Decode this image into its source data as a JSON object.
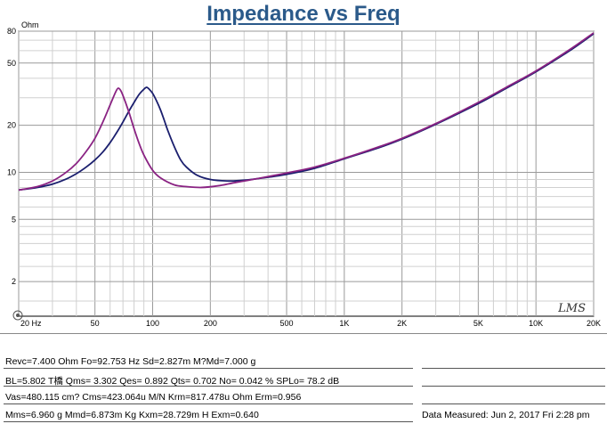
{
  "chart_data": {
    "type": "line",
    "title": "Impedance vs Freq",
    "ylabel": "Ohm",
    "xlabel": "",
    "xscale": "log",
    "yscale": "log",
    "xlim": [
      20,
      20000
    ],
    "ylim": [
      1.2,
      80
    ],
    "x_tick_labels": [
      {
        "value": 20,
        "label": "20 Hz"
      },
      {
        "value": 50,
        "label": "50"
      },
      {
        "value": 100,
        "label": "100"
      },
      {
        "value": 200,
        "label": "200"
      },
      {
        "value": 500,
        "label": "500"
      },
      {
        "value": 1000,
        "label": "1K"
      },
      {
        "value": 2000,
        "label": "2K"
      },
      {
        "value": 5000,
        "label": "5K"
      },
      {
        "value": 10000,
        "label": "10K"
      },
      {
        "value": 20000,
        "label": "20K"
      }
    ],
    "y_tick_labels": [
      {
        "value": 80,
        "label": "80"
      },
      {
        "value": 50,
        "label": "50"
      },
      {
        "value": 20,
        "label": "20"
      },
      {
        "value": 10,
        "label": "10"
      },
      {
        "value": 5,
        "label": "5"
      },
      {
        "value": 2,
        "label": "2"
      }
    ],
    "watermark": "LMS",
    "series": [
      {
        "name": "blue",
        "color": "#1b1f6e",
        "points": [
          [
            20,
            7.7
          ],
          [
            25,
            8.0
          ],
          [
            30,
            8.4
          ],
          [
            35,
            9.0
          ],
          [
            40,
            9.8
          ],
          [
            45,
            10.8
          ],
          [
            50,
            12.0
          ],
          [
            55,
            13.5
          ],
          [
            60,
            15.5
          ],
          [
            65,
            18.0
          ],
          [
            70,
            21.0
          ],
          [
            75,
            24.5
          ],
          [
            80,
            28.0
          ],
          [
            85,
            31.5
          ],
          [
            90,
            34.0
          ],
          [
            93,
            35.0
          ],
          [
            96,
            34.0
          ],
          [
            100,
            32.0
          ],
          [
            105,
            28.5
          ],
          [
            110,
            25.0
          ],
          [
            115,
            21.5
          ],
          [
            120,
            18.5
          ],
          [
            130,
            14.5
          ],
          [
            140,
            12.0
          ],
          [
            150,
            10.8
          ],
          [
            170,
            9.6
          ],
          [
            200,
            9.0
          ],
          [
            250,
            8.8
          ],
          [
            300,
            8.9
          ],
          [
            400,
            9.3
          ],
          [
            500,
            9.7
          ],
          [
            700,
            10.6
          ],
          [
            1000,
            12.2
          ],
          [
            1500,
            14.3
          ],
          [
            2000,
            16.3
          ],
          [
            3000,
            20.3
          ],
          [
            5000,
            27.5
          ],
          [
            7000,
            34.5
          ],
          [
            10000,
            44.0
          ],
          [
            15000,
            60.0
          ],
          [
            20000,
            77.0
          ]
        ]
      },
      {
        "name": "purple",
        "color": "#8a2383",
        "points": [
          [
            20,
            7.7
          ],
          [
            25,
            8.1
          ],
          [
            30,
            8.8
          ],
          [
            35,
            9.9
          ],
          [
            40,
            11.4
          ],
          [
            45,
            13.6
          ],
          [
            50,
            16.5
          ],
          [
            55,
            21.0
          ],
          [
            60,
            27.0
          ],
          [
            64,
            32.5
          ],
          [
            66,
            34.5
          ],
          [
            68,
            33.5
          ],
          [
            70,
            31.0
          ],
          [
            75,
            24.5
          ],
          [
            80,
            19.0
          ],
          [
            85,
            15.3
          ],
          [
            90,
            12.9
          ],
          [
            100,
            10.3
          ],
          [
            110,
            9.2
          ],
          [
            130,
            8.3
          ],
          [
            150,
            8.1
          ],
          [
            180,
            8.0
          ],
          [
            220,
            8.2
          ],
          [
            270,
            8.6
          ],
          [
            350,
            9.1
          ],
          [
            500,
            9.9
          ],
          [
            700,
            10.8
          ],
          [
            1000,
            12.3
          ],
          [
            1500,
            14.5
          ],
          [
            2000,
            16.5
          ],
          [
            3000,
            20.5
          ],
          [
            5000,
            28.0
          ],
          [
            7000,
            35.0
          ],
          [
            10000,
            44.5
          ],
          [
            15000,
            61.0
          ],
          [
            20000,
            78.0
          ]
        ]
      }
    ]
  },
  "params": {
    "row1": "Revc=7.400 Ohm  Fo=92.753 Hz  Sd=2.827m M?Md=7.000 g",
    "row2": "BL=5.802 T橋  Qms= 3.302  Qes= 0.892  Qts= 0.702  No= 0.042 %  SPLo= 78.2 dB",
    "row3": "Vas=480.115 cm? Cms=423.064u M/N  Krm=817.478u Ohm  Erm=0.956",
    "row4": "Mms=6.960 g  Mmd=6.873m Kg  Kxm=28.729m H  Exm=0.640",
    "measured": "Data Measured: Jun  2, 2017   Fri   2:28 pm"
  }
}
